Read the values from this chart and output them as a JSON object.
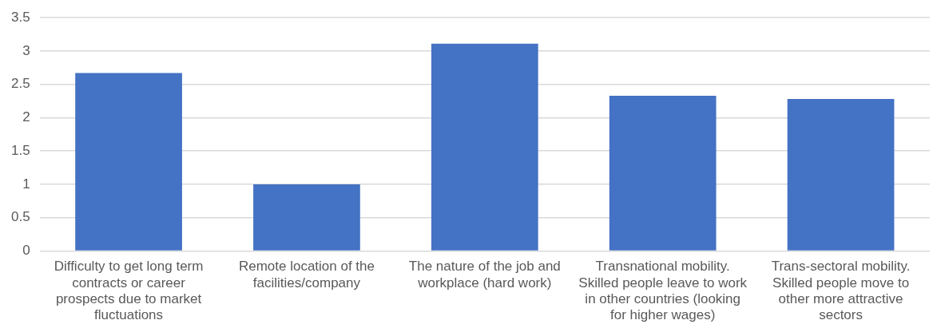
{
  "chart_data": {
    "type": "bar",
    "categories": [
      "Difficulty to get long term contracts or career prospects due to market fluctuations",
      "Remote location of the facilities/company",
      "The nature of the job and workplace (hard work)",
      "Transnational mobility. Skilled people leave to work in other countries (looking for higher wages)",
      "Trans-sectoral mobility. Skilled people move to other more attractive sectors"
    ],
    "values": [
      2.67,
      1.0,
      3.11,
      2.33,
      2.28
    ],
    "color": "#4472c4",
    "ylim": [
      0,
      3.5
    ],
    "yticks": [
      0,
      0.5,
      1,
      1.5,
      2,
      2.5,
      3,
      3.5
    ],
    "grid": "y",
    "legend": false
  }
}
